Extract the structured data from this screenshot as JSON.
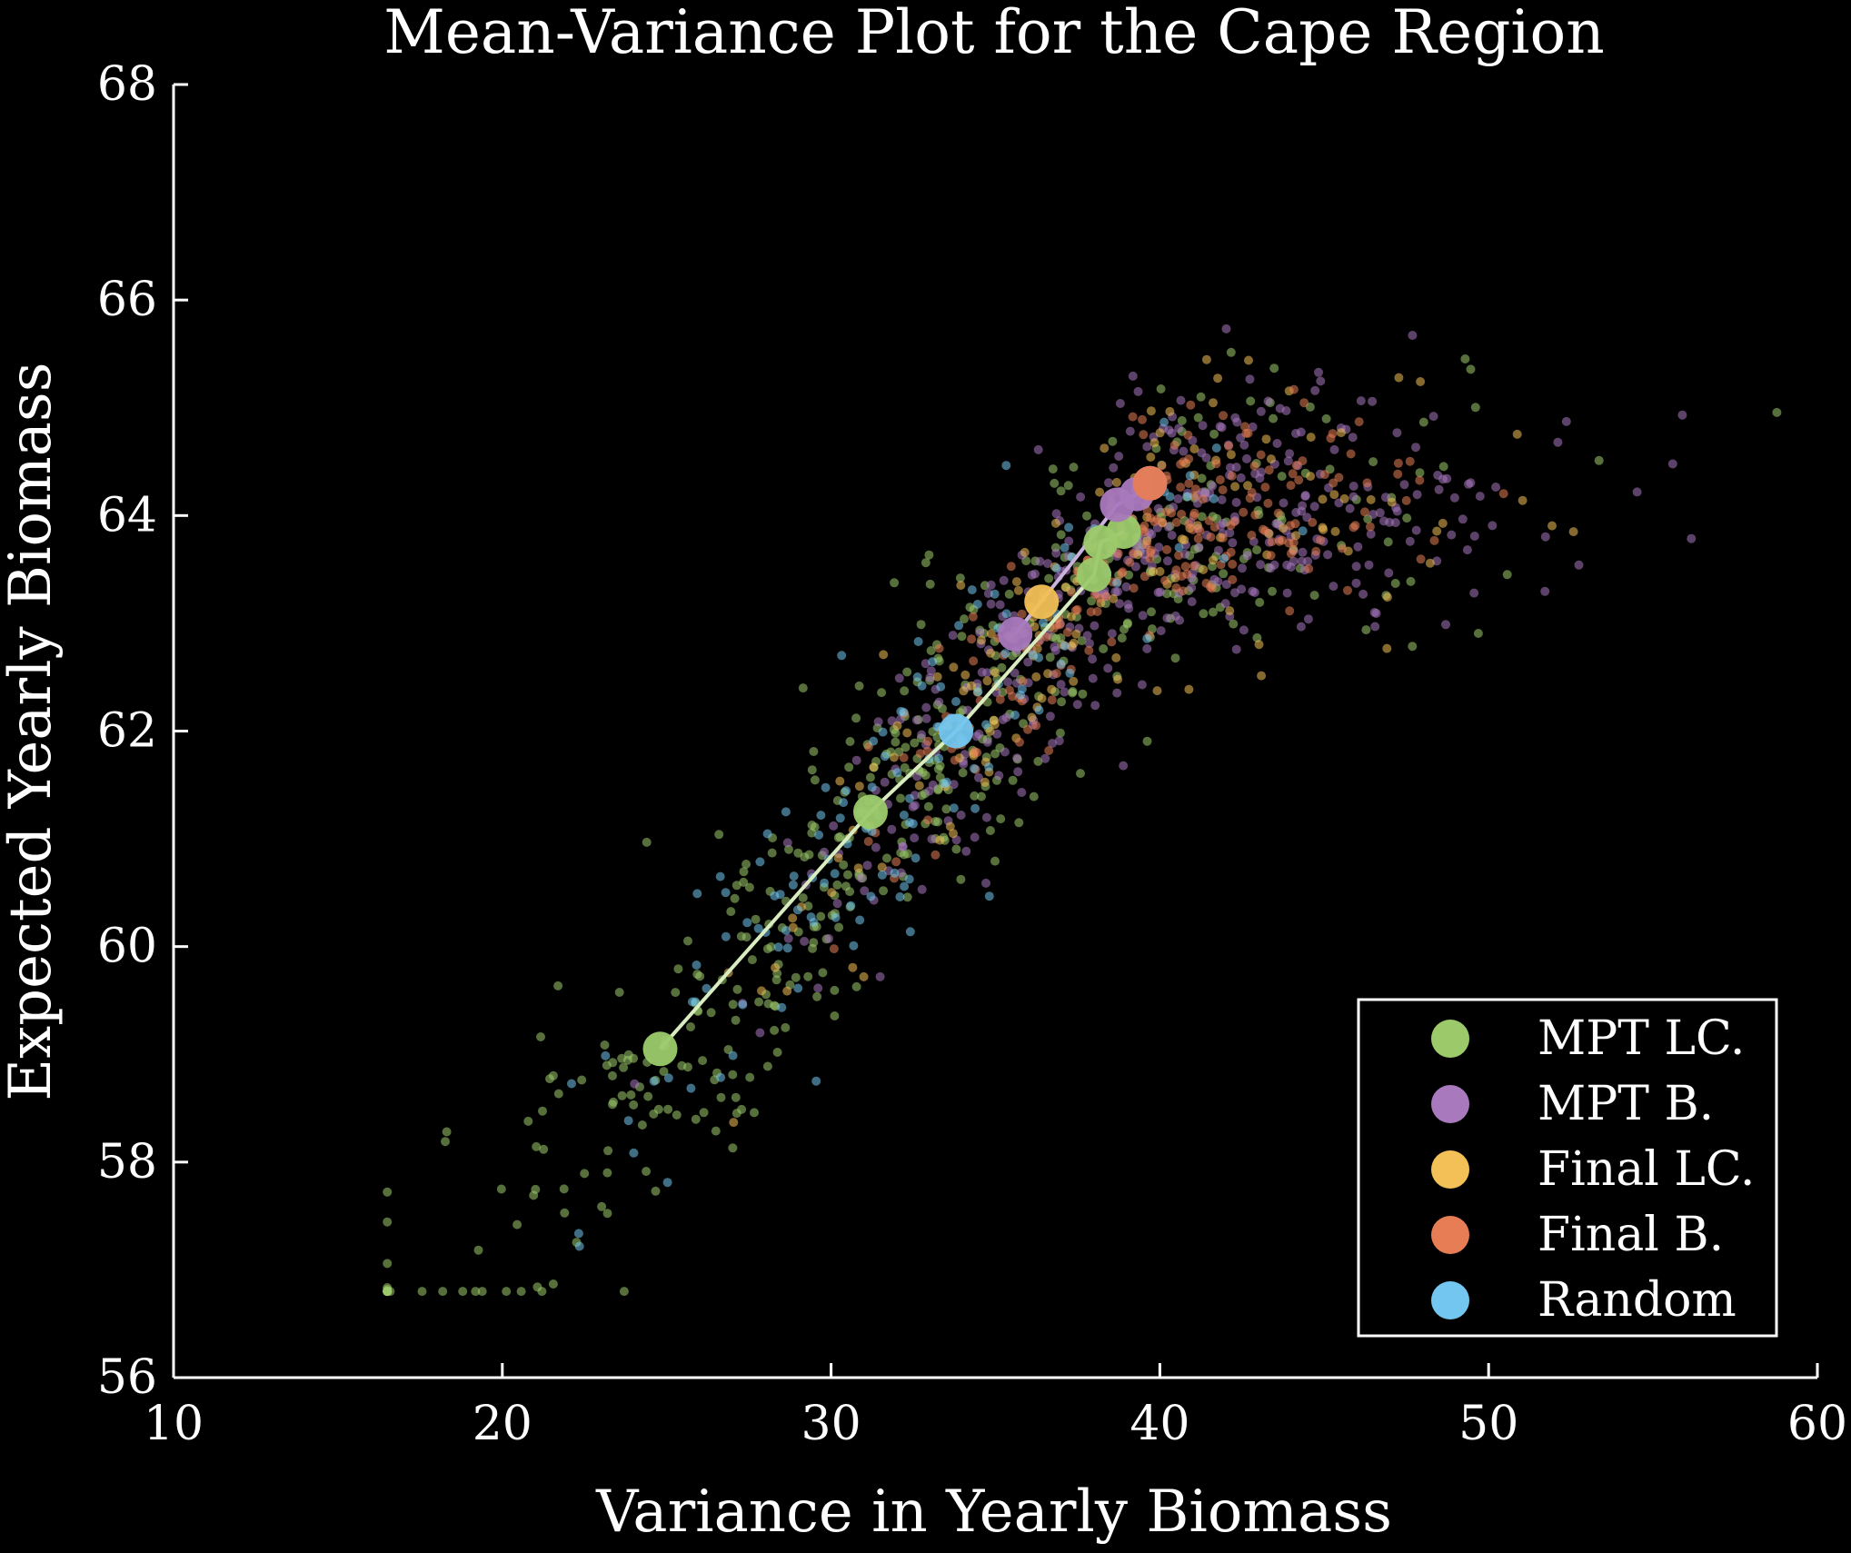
{
  "chart_data": {
    "type": "scatter",
    "title": "Mean-Variance Plot for the Cape Region",
    "xlabel": "Variance in Yearly Biomass",
    "ylabel": "Expected Yearly Biomass",
    "xlim": [
      10,
      60
    ],
    "ylim": [
      56,
      68
    ],
    "xticks": [
      10,
      20,
      30,
      40,
      50,
      60
    ],
    "yticks": [
      56,
      58,
      60,
      62,
      64,
      66,
      68
    ],
    "xtick_labels": [
      "10",
      "20",
      "30",
      "40",
      "50",
      "60"
    ],
    "ytick_labels": [
      "56",
      "58",
      "60",
      "62",
      "64",
      "66",
      "68"
    ],
    "grid": false,
    "legend_position": "bottom-right",
    "colors": {
      "mpt_lc": "#9cca6b",
      "mpt_b": "#a879bd",
      "final_lc": "#f2c056",
      "final_b": "#e67d55",
      "random": "#73c6ef",
      "frontier_lc": "#d9ecc0",
      "frontier_b": "#c9b2dc"
    },
    "series": [
      {
        "name": "MPT LC.",
        "color": "#9cca6b",
        "points": [
          [
            24.8,
            59.05
          ],
          [
            31.2,
            61.25
          ],
          [
            38.0,
            63.45
          ],
          [
            38.2,
            63.75
          ],
          [
            38.9,
            63.85
          ]
        ]
      },
      {
        "name": "MPT B.",
        "color": "#a879bd",
        "points": [
          [
            35.6,
            62.9
          ],
          [
            38.7,
            64.1
          ],
          [
            39.3,
            64.2
          ],
          [
            39.7,
            64.3
          ]
        ]
      },
      {
        "name": "Final LC.",
        "color": "#f2c056",
        "points": [
          [
            36.4,
            63.2
          ]
        ]
      },
      {
        "name": "Final B.",
        "color": "#e67d55",
        "points": [
          [
            39.7,
            64.3
          ]
        ]
      },
      {
        "name": "Random",
        "color": "#73c6ef",
        "points": [
          [
            33.8,
            62.0
          ]
        ]
      }
    ],
    "frontier_lines": [
      {
        "color": "#d9ecc0",
        "points": [
          [
            24.8,
            59.05
          ],
          [
            31.2,
            61.25
          ],
          [
            33.8,
            62.0
          ],
          [
            38.0,
            63.45
          ],
          [
            38.2,
            63.75
          ],
          [
            38.9,
            63.85
          ]
        ]
      },
      {
        "color": "#c9b2dc",
        "points": [
          [
            35.6,
            62.9
          ],
          [
            37.3,
            63.55
          ],
          [
            38.7,
            64.1
          ],
          [
            39.3,
            64.2
          ],
          [
            39.7,
            64.3
          ]
        ]
      }
    ]
  }
}
